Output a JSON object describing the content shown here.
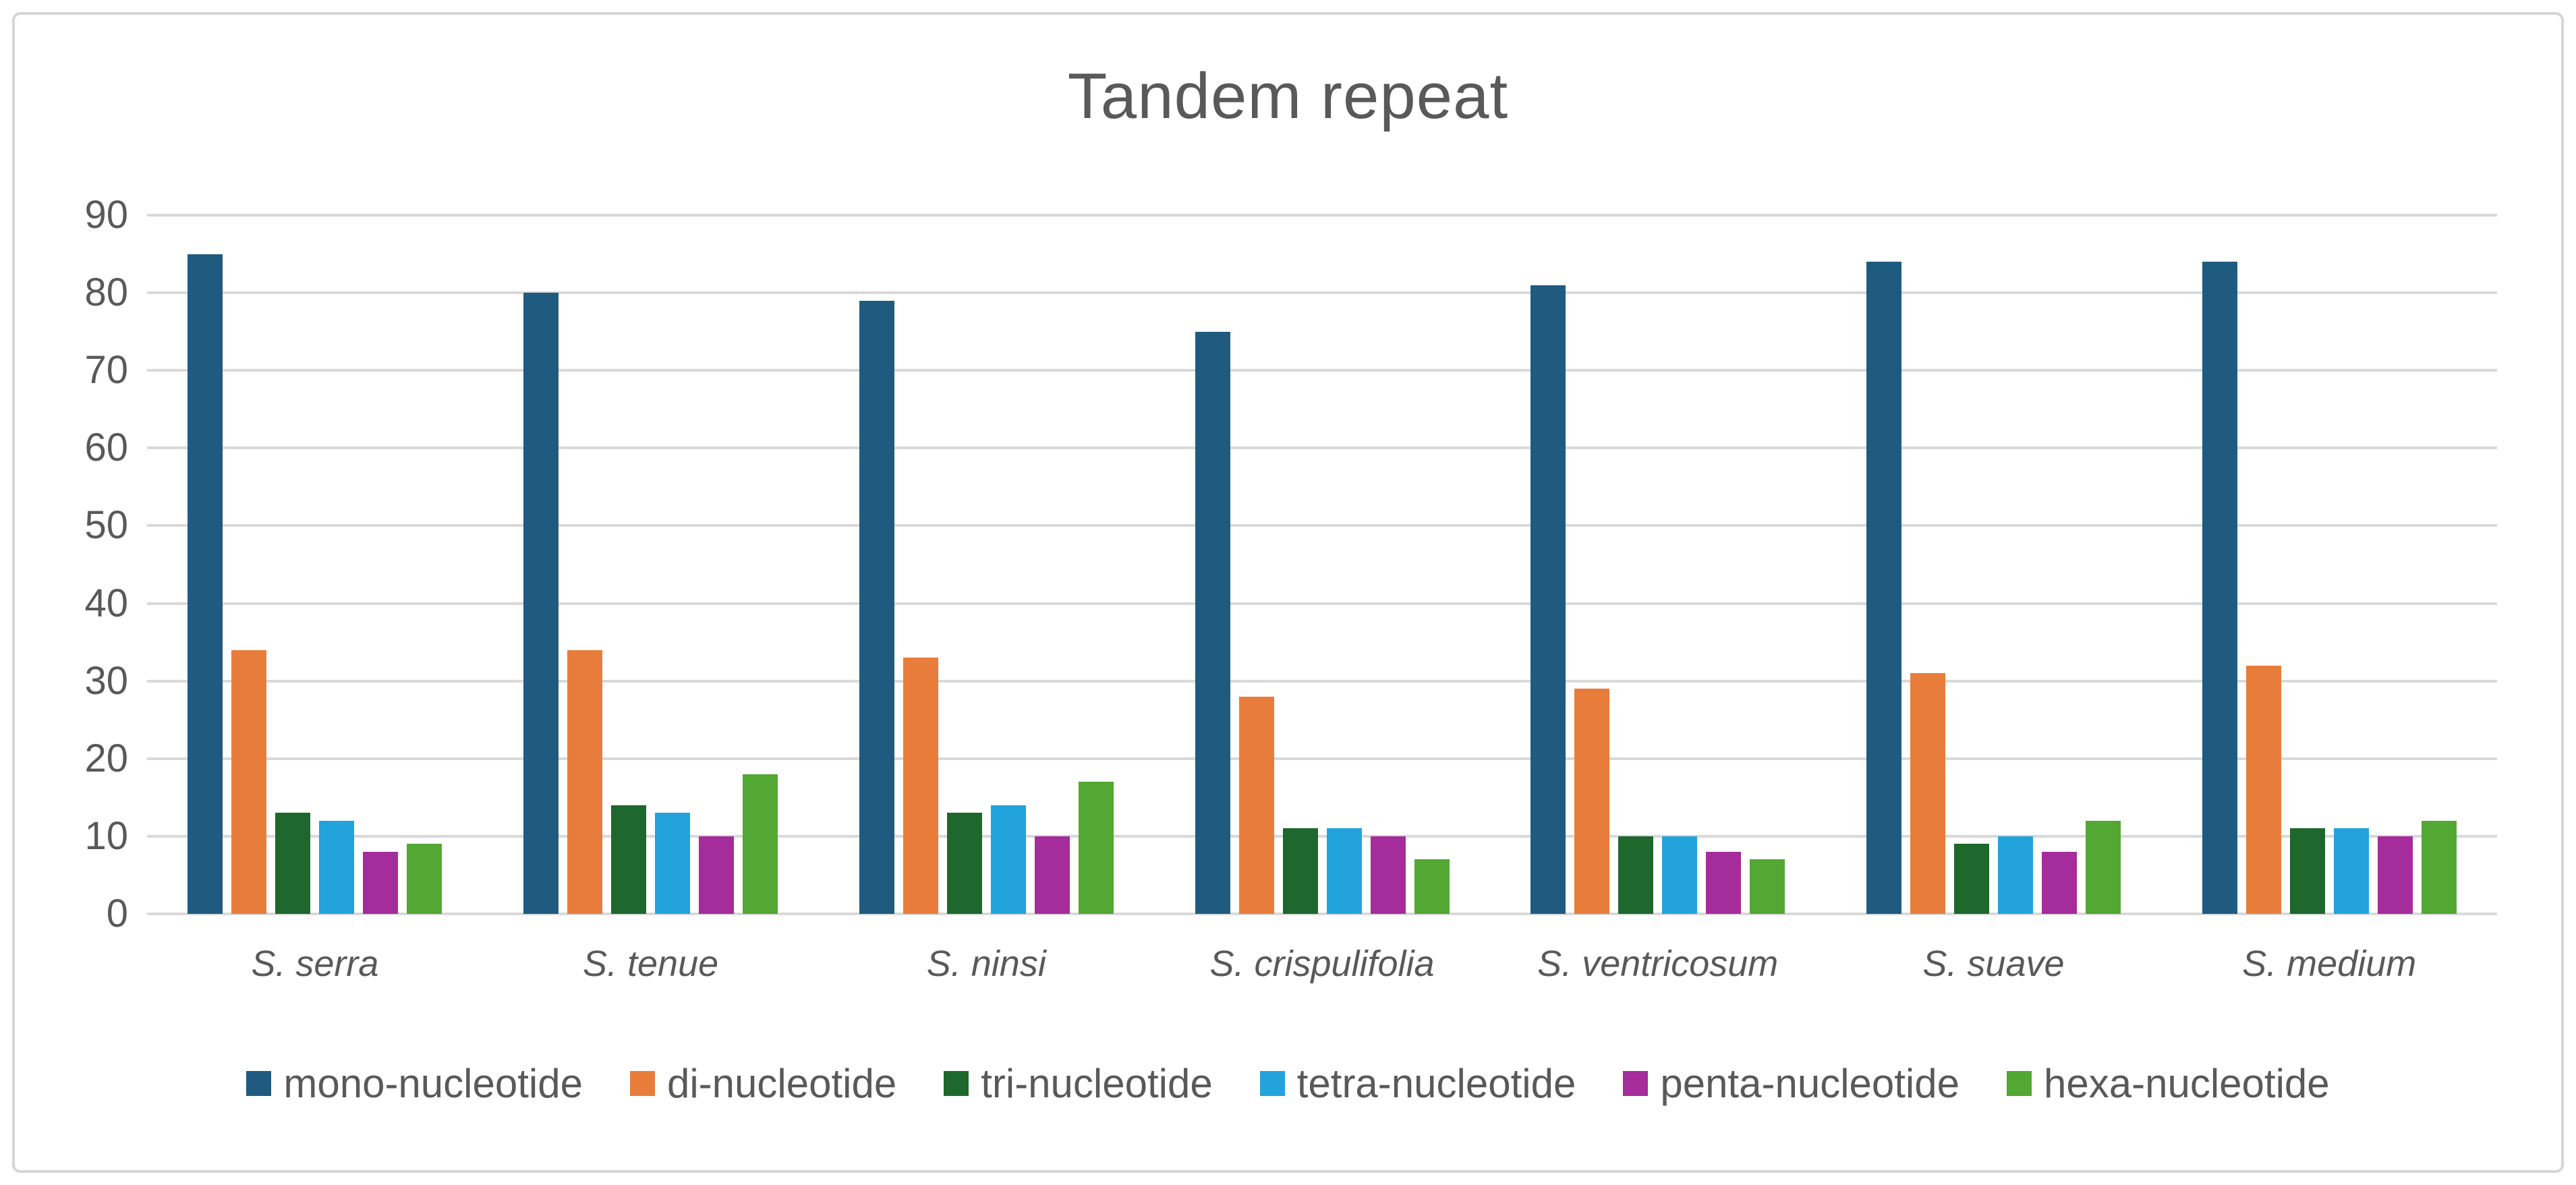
{
  "title": "Tandem repeat",
  "styles": {
    "title_color": "#595959",
    "axis_text_color": "#595959",
    "gridline_color": "#D9D9D9",
    "figure_border_color": "#D6D6D6",
    "background": "#FFFFFF"
  },
  "chart_data": {
    "type": "bar",
    "title": "Tandem repeat",
    "categories": [
      "S. serra",
      "S. tenue",
      "S. ninsi",
      "S. crispulifolia",
      "S. ventricosum",
      "S. suave",
      "S. medium"
    ],
    "series": [
      {
        "name": "mono-nucleotide",
        "color": "#1F5B7F",
        "values": [
          85,
          80,
          79,
          75,
          81,
          84,
          84
        ]
      },
      {
        "name": "di-nucleotide",
        "color": "#E87D3B",
        "values": [
          34,
          34,
          33,
          28,
          29,
          31,
          32
        ]
      },
      {
        "name": "tri-nucleotide",
        "color": "#1E672D",
        "values": [
          13,
          14,
          13,
          11,
          10,
          9,
          11
        ]
      },
      {
        "name": "tetra-nucleotide",
        "color": "#22A3DC",
        "values": [
          12,
          13,
          14,
          11,
          10,
          10,
          11
        ]
      },
      {
        "name": "penta-nucleotide",
        "color": "#A52C9B",
        "values": [
          8,
          10,
          10,
          10,
          8,
          8,
          10
        ]
      },
      {
        "name": "hexa-nucleotide",
        "color": "#53A733",
        "values": [
          9,
          18,
          17,
          7,
          7,
          12,
          12
        ]
      }
    ],
    "xlabel": "",
    "ylabel": "",
    "ylim": [
      0,
      90
    ],
    "yticks": [
      0,
      10,
      20,
      30,
      40,
      50,
      60,
      70,
      80,
      90
    ],
    "grid": "horizontal",
    "legend_position": "bottom"
  }
}
